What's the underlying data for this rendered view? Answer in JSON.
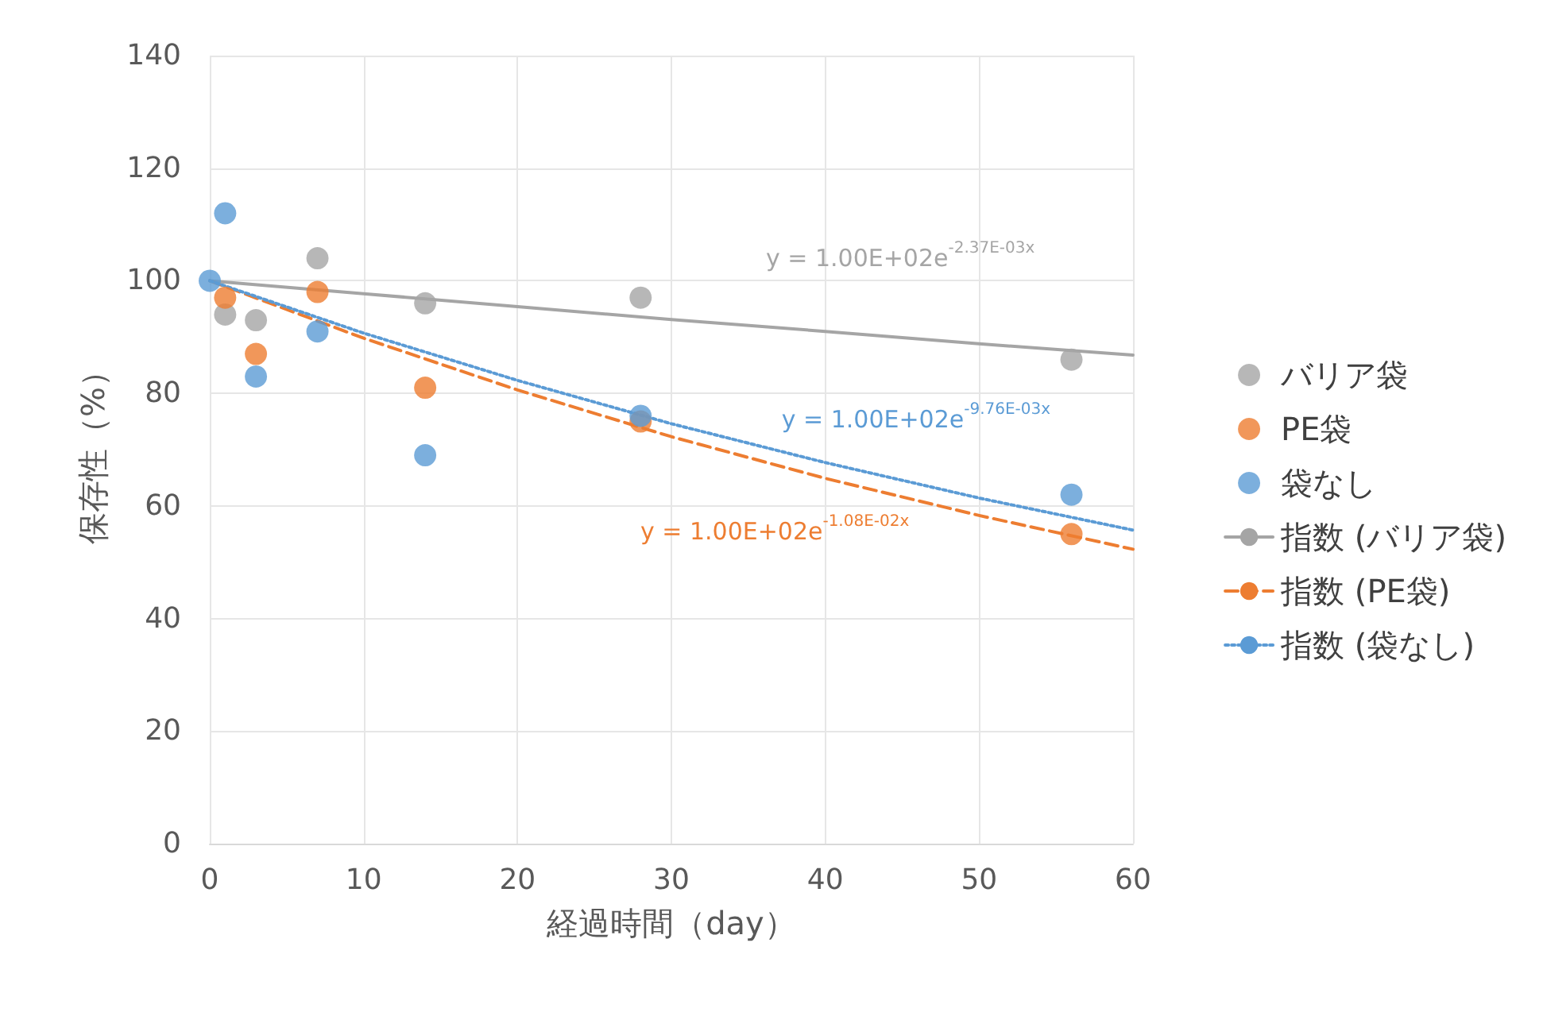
{
  "chart_data": {
    "type": "scatter",
    "xlabel": "経過時間（day）",
    "ylabel": "保存性（%）",
    "x": [
      0,
      1,
      3,
      7,
      14,
      28,
      56
    ],
    "series": [
      {
        "name": "バリア袋",
        "color": "#a5a5a5",
        "values": [
          null,
          94,
          93,
          104,
          96,
          97,
          86
        ]
      },
      {
        "name": "PE袋",
        "color": "#ed7d31",
        "values": [
          null,
          97,
          87,
          98,
          81,
          75,
          55
        ]
      },
      {
        "name": "袋なし",
        "color": "#5b9bd5",
        "values": [
          100,
          112,
          83,
          91,
          69,
          76,
          62
        ]
      },
      {
        "name": "指数 (バリア袋)",
        "type": "line",
        "color": "#a5a5a5",
        "line_style": "solid",
        "marker": "none",
        "x": [
          0,
          10,
          20,
          30,
          40,
          50,
          60
        ],
        "values": [
          100,
          97.7,
          95.4,
          93.1,
          91,
          88.8,
          86.8
        ]
      },
      {
        "name": "指数 (PE袋)",
        "type": "line",
        "color": "#ed7d31",
        "line_style": "dashed",
        "marker": "none",
        "x": [
          0,
          10,
          20,
          30,
          40,
          50,
          60
        ],
        "values": [
          100,
          89.8,
          80.6,
          72.3,
          64.9,
          58.3,
          52.3
        ]
      },
      {
        "name": "指数 (袋なし)",
        "type": "line",
        "color": "#5b9bd5",
        "line_style": "dotted",
        "marker": "none",
        "x": [
          0,
          10,
          20,
          30,
          40,
          50,
          60
        ],
        "values": [
          100,
          90.7,
          82.3,
          74.6,
          67.7,
          61.4,
          55.7
        ]
      }
    ],
    "annotations": [
      "y = 1.00E+02e$^{-2.37E-03x}$",
      "y = 1.00E+02e$^{-1.08E-02x}$",
      "y = 1.00E+02e$^{-9.76E-03x}$"
    ],
    "xlim": [
      0,
      60
    ],
    "xticks": [
      0,
      10,
      20,
      30,
      40,
      50,
      60
    ],
    "ylim": [
      0,
      140
    ],
    "yticks": [
      0,
      20,
      40,
      60,
      80,
      100,
      120,
      140
    ],
    "grid": true,
    "legend": "right",
    "marker": "circle"
  }
}
